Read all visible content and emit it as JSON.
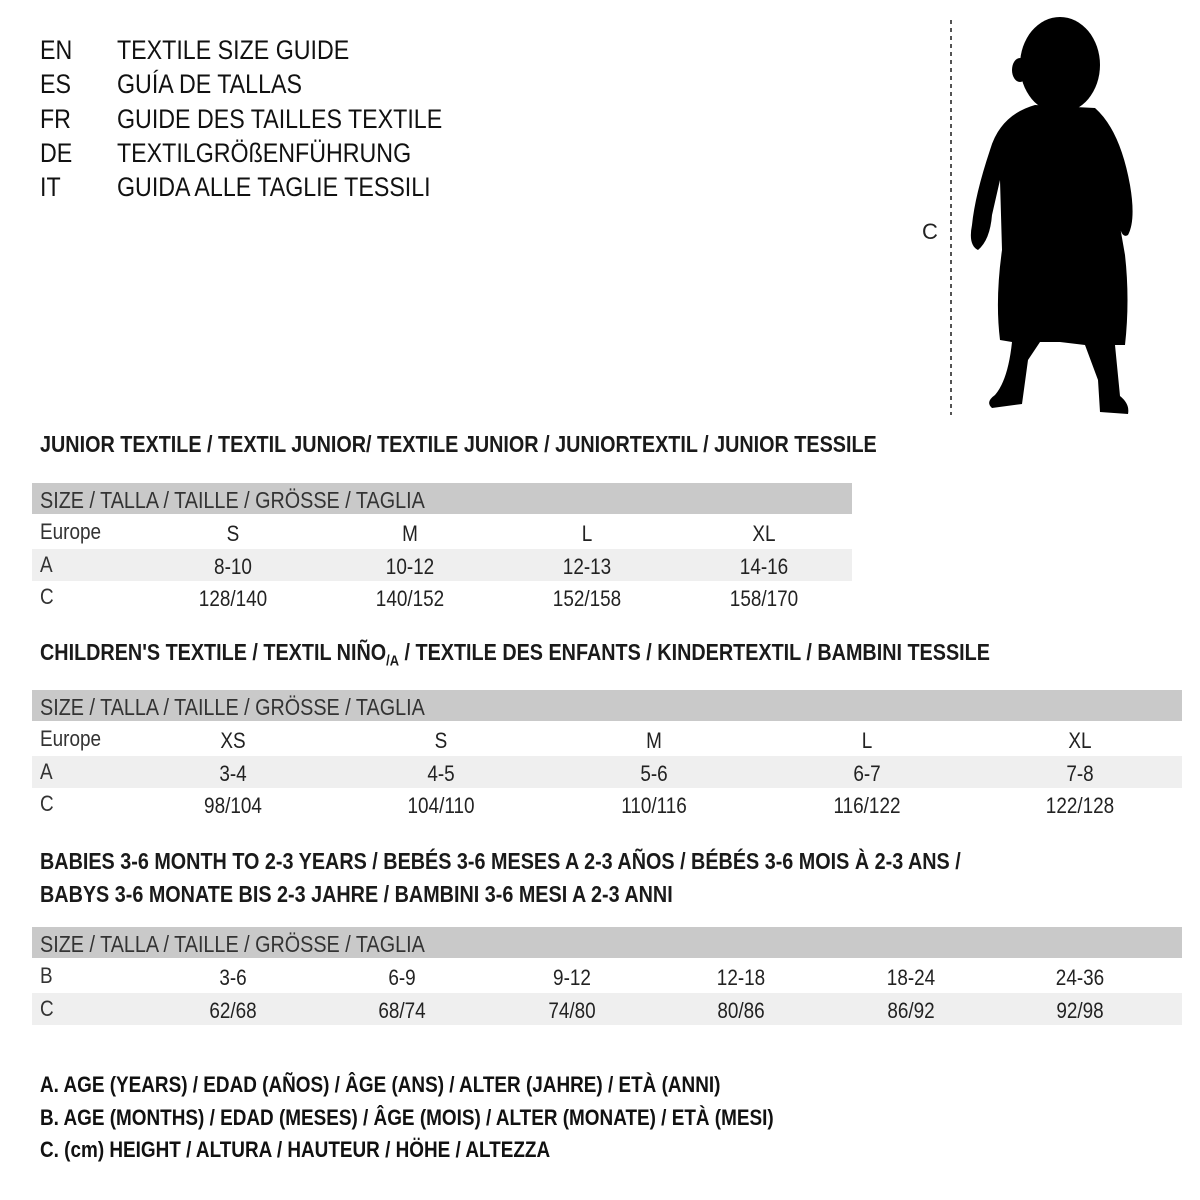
{
  "header": {
    "languages": [
      {
        "code": "EN",
        "title": "TEXTILE SIZE GUIDE"
      },
      {
        "code": "ES",
        "title": "GUÍA DE TALLAS"
      },
      {
        "code": "FR",
        "title": "GUIDE DES TAILLES TEXTILE"
      },
      {
        "code": "DE",
        "title": "TEXTILGRÖßENFÜHRUNG"
      },
      {
        "code": "IT",
        "title": "GUIDA ALLE TAGLIE TESSILI"
      }
    ]
  },
  "figure": {
    "height_label": "C"
  },
  "junior": {
    "title": "JUNIOR TEXTILE / TEXTIL JUNIOR/ TEXTILE JUNIOR / JUNIORTEXTIL / JUNIOR TESSILE",
    "header": "SIZE / TALLA / TAILLE / GRÖSSE / TAGLIA",
    "rows": [
      {
        "label": "Europe",
        "values": [
          "S",
          "M",
          "L",
          "XL"
        ]
      },
      {
        "label": "A",
        "values": [
          "8-10",
          "10-12",
          "12-13",
          "14-16"
        ]
      },
      {
        "label": "C",
        "values": [
          "128/140",
          "140/152",
          "152/158",
          "158/170"
        ]
      }
    ]
  },
  "children": {
    "title_main": "CHILDREN'S TEXTILE / TEXTIL NIÑO",
    "title_sub": "/A",
    "title_rest": " / TEXTILE DES ENFANTS / KINDERTEXTIL / BAMBINI TESSILE",
    "header": "SIZE / TALLA / TAILLE / GRÖSSE / TAGLIA",
    "rows": [
      {
        "label": "Europe",
        "values": [
          "XS",
          "S",
          "M",
          "L",
          "XL"
        ]
      },
      {
        "label": "A",
        "values": [
          "3-4",
          "4-5",
          "5-6",
          "6-7",
          "7-8"
        ]
      },
      {
        "label": "C",
        "values": [
          "98/104",
          "104/110",
          "110/116",
          "116/122",
          "122/128"
        ]
      }
    ]
  },
  "babies": {
    "title_line1": "BABIES 3-6 MONTH TO 2-3 YEARS / BEBÉS 3-6 MESES A 2-3 AÑOS / BÉBÉS 3-6 MOIS À 2-3 ANS /",
    "title_line2": "BABYS 3-6 MONATE BIS 2-3 JAHRE / BAMBINI 3-6 MESI A 2-3 ANNI",
    "header": "SIZE / TALLA / TAILLE / GRÖSSE / TAGLIA",
    "rows": [
      {
        "label": "B",
        "values": [
          "3-6",
          "6-9",
          "9-12",
          "12-18",
          "18-24",
          "24-36"
        ]
      },
      {
        "label": "C",
        "values": [
          "62/68",
          "68/74",
          "74/80",
          "80/86",
          "86/92",
          "92/98"
        ]
      }
    ]
  },
  "legend": [
    "A. AGE (YEARS) / EDAD (AÑOS) / ÂGE (ANS) / ALTER (JAHRE) / ETÀ (ANNI)",
    "B. AGE (MONTHS) / EDAD (MESES) / ÂGE (MOIS) / ALTER (MONATE) / ETÀ (MESI)",
    "C. (cm) HEIGHT / ALTURA / HAUTEUR / HÖHE / ALTEZZA"
  ]
}
